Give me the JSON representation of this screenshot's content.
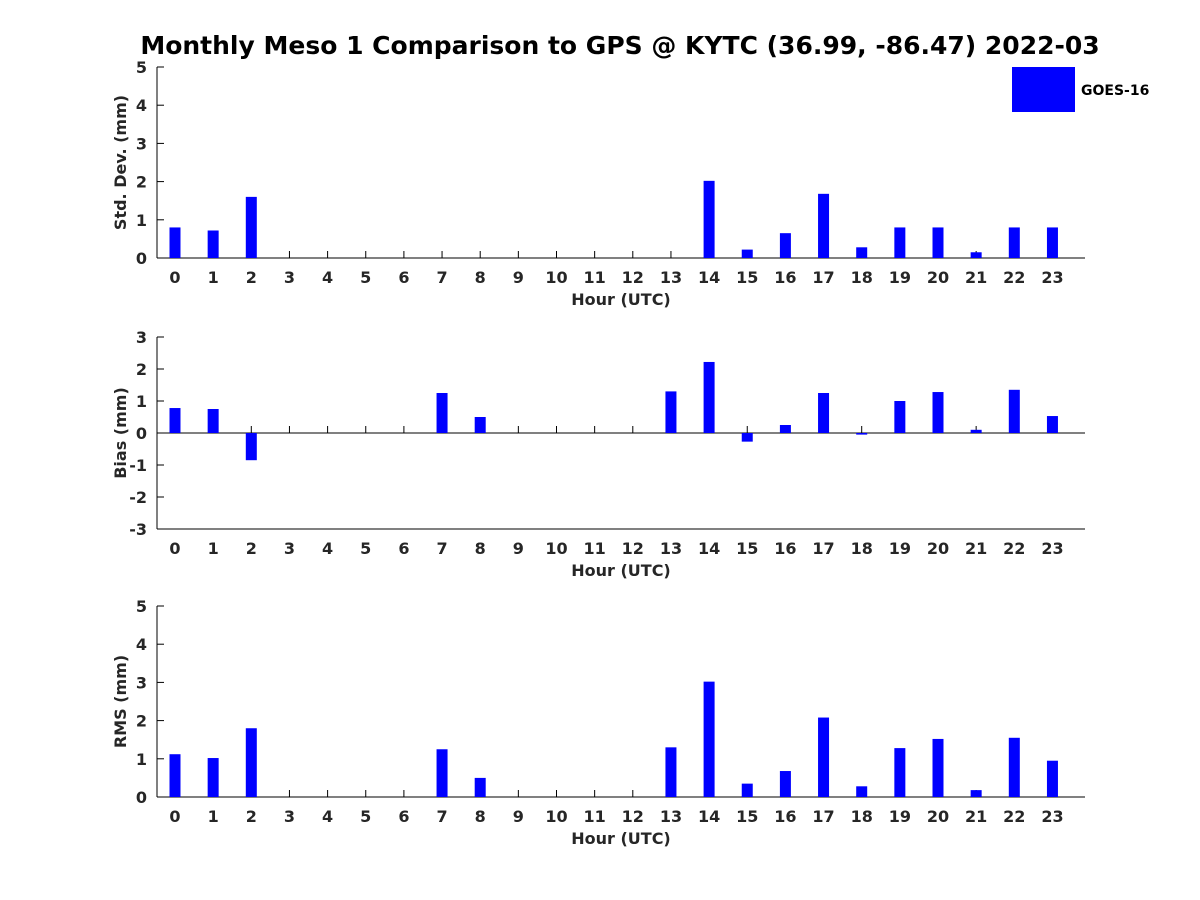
{
  "title": "Monthly Meso 1 Comparison to GPS @ KYTC (36.99, -86.47) 2022-03",
  "legend": {
    "label": "GOES-16",
    "color": "#0000ff",
    "placement": "top-right"
  },
  "chart_data": [
    {
      "type": "bar",
      "name": "std-dev",
      "xlabel": "Hour (UTC)",
      "ylabel": "Std. Dev. (mm)",
      "ylim": [
        0,
        5
      ],
      "yticks": [
        0,
        1,
        2,
        3,
        4,
        5
      ],
      "categories": [
        "0",
        "1",
        "2",
        "3",
        "4",
        "5",
        "6",
        "7",
        "8",
        "9",
        "10",
        "11",
        "12",
        "13",
        "14",
        "15",
        "16",
        "17",
        "18",
        "19",
        "20",
        "21",
        "22",
        "23"
      ],
      "series": [
        {
          "name": "GOES-16",
          "color": "#0000ff",
          "values": [
            0.8,
            0.72,
            1.6,
            null,
            null,
            null,
            null,
            null,
            null,
            null,
            null,
            null,
            null,
            null,
            2.02,
            0.22,
            0.65,
            1.68,
            0.28,
            0.8,
            0.8,
            0.15,
            0.8,
            0.8
          ]
        }
      ]
    },
    {
      "type": "bar",
      "name": "bias",
      "xlabel": "Hour (UTC)",
      "ylabel": "Bias (mm)",
      "ylim": [
        -3,
        3
      ],
      "yticks": [
        -3,
        -2,
        -1,
        0,
        1,
        2,
        3
      ],
      "zero_line": true,
      "categories": [
        "0",
        "1",
        "2",
        "3",
        "4",
        "5",
        "6",
        "7",
        "8",
        "9",
        "10",
        "11",
        "12",
        "13",
        "14",
        "15",
        "16",
        "17",
        "18",
        "19",
        "20",
        "21",
        "22",
        "23"
      ],
      "series": [
        {
          "name": "GOES-16",
          "color": "#0000ff",
          "values": [
            0.78,
            0.75,
            -0.85,
            null,
            null,
            null,
            null,
            1.25,
            0.5,
            null,
            null,
            null,
            null,
            1.3,
            2.22,
            -0.27,
            0.25,
            1.25,
            -0.05,
            1.0,
            1.28,
            0.1,
            1.35,
            0.53
          ]
        }
      ]
    },
    {
      "type": "bar",
      "name": "rms",
      "xlabel": "Hour (UTC)",
      "ylabel": "RMS (mm)",
      "ylim": [
        0,
        5
      ],
      "yticks": [
        0,
        1,
        2,
        3,
        4,
        5
      ],
      "categories": [
        "0",
        "1",
        "2",
        "3",
        "4",
        "5",
        "6",
        "7",
        "8",
        "9",
        "10",
        "11",
        "12",
        "13",
        "14",
        "15",
        "16",
        "17",
        "18",
        "19",
        "20",
        "21",
        "22",
        "23"
      ],
      "series": [
        {
          "name": "GOES-16",
          "color": "#0000ff",
          "values": [
            1.12,
            1.02,
            1.8,
            null,
            null,
            null,
            null,
            1.25,
            0.5,
            null,
            null,
            null,
            null,
            1.3,
            3.02,
            0.35,
            0.68,
            2.08,
            0.28,
            1.28,
            1.52,
            0.18,
            1.55,
            0.95
          ]
        }
      ]
    }
  ]
}
